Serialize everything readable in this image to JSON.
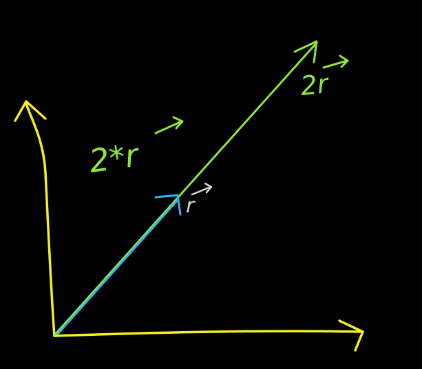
{
  "colors": {
    "background": "#000000",
    "axes": "#f5ef1a",
    "scaled_vector": "#8ee63a",
    "unit_vector": "#2fb8f0",
    "unit_label": "#d8d8d8"
  },
  "labels": {
    "scaled_vector_left": "2*r",
    "scaled_vector_tip": "2r",
    "unit_vector": "r"
  },
  "vectors": [
    {
      "name": "r",
      "scale": 1
    },
    {
      "name": "2r",
      "scale": 2
    }
  ]
}
